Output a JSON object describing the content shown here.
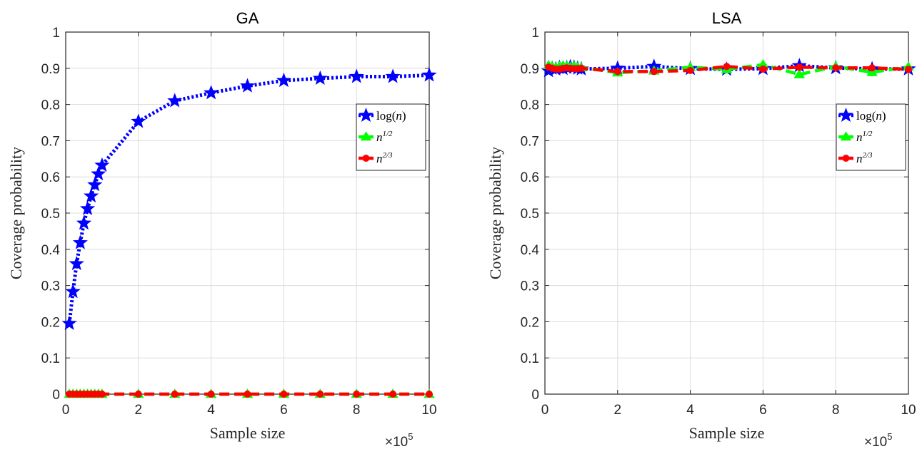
{
  "chart_data": [
    {
      "type": "line",
      "title": "GA",
      "xlabel": "Sample size",
      "ylabel": "Coverage probability",
      "x_multiplier": "×10",
      "x_multiplier_exp": "5",
      "xlim": [
        0,
        10
      ],
      "ylim": [
        0,
        1
      ],
      "xticks": [
        0,
        2,
        4,
        6,
        8,
        10
      ],
      "yticks": [
        0,
        0.1,
        0.2,
        0.3,
        0.4,
        0.5,
        0.6,
        0.7,
        0.8,
        0.9,
        1
      ],
      "ytick_labels": [
        "0",
        "0.1",
        "0.2",
        "0.3",
        "0.4",
        "0.5",
        "0.6",
        "0.7",
        "0.8",
        "0.9",
        "1"
      ],
      "grid": true,
      "legend_position": "top-right",
      "x": [
        0.1,
        0.2,
        0.3,
        0.4,
        0.5,
        0.6,
        0.7,
        0.8,
        0.9,
        1,
        2,
        3,
        4,
        5,
        6,
        7,
        8,
        9,
        10
      ],
      "series": [
        {
          "name": "log(n)",
          "color": "#0000ff",
          "marker": "star",
          "dash": "dotted",
          "values": [
            0.195,
            0.283,
            0.36,
            0.418,
            0.472,
            0.512,
            0.547,
            0.578,
            0.608,
            0.632,
            0.753,
            0.81,
            0.832,
            0.851,
            0.866,
            0.872,
            0.877,
            0.877,
            0.881
          ]
        },
        {
          "name": "n^{1/2}",
          "color": "#00ff00",
          "marker": "triangle",
          "dash": "dashed",
          "values": [
            0,
            0,
            0,
            0,
            0,
            0,
            0,
            0,
            0,
            0,
            0,
            0,
            0,
            0,
            0,
            0,
            0,
            0,
            0
          ]
        },
        {
          "name": "n^{2/3}",
          "color": "#ff0000",
          "marker": "circle",
          "dash": "dashed",
          "values": [
            0,
            0,
            0,
            0,
            0,
            0,
            0,
            0,
            0,
            0,
            0,
            0,
            0,
            0,
            0,
            0,
            0,
            0,
            0
          ]
        }
      ]
    },
    {
      "type": "line",
      "title": "LSA",
      "xlabel": "Sample size",
      "ylabel": "Coverage probability",
      "x_multiplier": "×10",
      "x_multiplier_exp": "5",
      "xlim": [
        0,
        10
      ],
      "ylim": [
        0,
        1
      ],
      "xticks": [
        0,
        2,
        4,
        6,
        8,
        10
      ],
      "yticks": [
        0,
        0.1,
        0.2,
        0.3,
        0.4,
        0.5,
        0.6,
        0.7,
        0.8,
        0.9,
        1
      ],
      "ytick_labels": [
        "0",
        "0.1",
        "0.2",
        "0.3",
        "0.4",
        "0.5",
        "0.6",
        "0.7",
        "0.8",
        "0.9",
        "1"
      ],
      "grid": true,
      "legend_position": "top-right",
      "x": [
        0.1,
        0.2,
        0.3,
        0.4,
        0.5,
        0.6,
        0.7,
        0.8,
        0.9,
        1,
        2,
        3,
        4,
        5,
        6,
        7,
        8,
        9,
        10
      ],
      "series": [
        {
          "name": "log(n)",
          "color": "#0000ff",
          "marker": "star",
          "dash": "dotted",
          "values": [
            0.893,
            0.9,
            0.898,
            0.902,
            0.899,
            0.902,
            0.904,
            0.903,
            0.9,
            0.898,
            0.9,
            0.905,
            0.899,
            0.897,
            0.899,
            0.907,
            0.901,
            0.898,
            0.898
          ]
        },
        {
          "name": "n^{1/2}",
          "color": "#00ff00",
          "marker": "triangle",
          "dash": "dashed",
          "values": [
            0.908,
            0.905,
            0.902,
            0.905,
            0.907,
            0.906,
            0.904,
            0.906,
            0.903,
            0.902,
            0.888,
            0.893,
            0.903,
            0.897,
            0.91,
            0.883,
            0.905,
            0.889,
            0.904
          ]
        },
        {
          "name": "n^{2/3}",
          "color": "#ff0000",
          "marker": "circle",
          "dash": "dashed",
          "values": [
            0.903,
            0.9,
            0.898,
            0.898,
            0.9,
            0.901,
            0.9,
            0.899,
            0.899,
            0.9,
            0.891,
            0.891,
            0.894,
            0.905,
            0.898,
            0.903,
            0.901,
            0.901,
            0.897
          ]
        }
      ]
    }
  ]
}
